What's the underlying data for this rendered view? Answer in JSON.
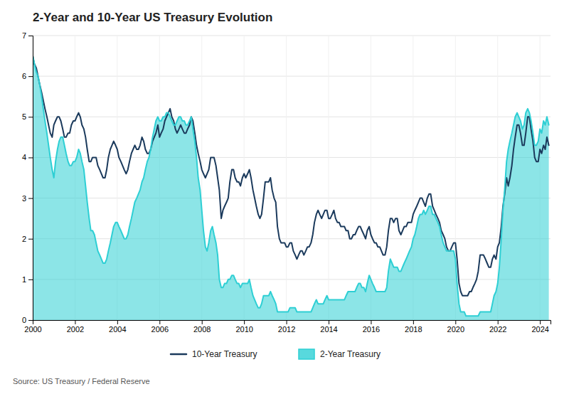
{
  "chart_data": {
    "type": "line",
    "title": "2-Year and 10-Year US Treasury Evolution",
    "annotations": [
      "Source: US Treasury / Federal Reserve"
    ],
    "xlim": [
      2000,
      2024.5
    ],
    "xticks": [
      2000,
      2002,
      2004,
      2006,
      2008,
      2010,
      2012,
      2014,
      2016,
      2018,
      2020,
      2022,
      2024
    ],
    "ylim": [
      0,
      7
    ],
    "yticks": [
      0,
      1,
      2,
      3,
      4,
      5,
      6,
      7
    ],
    "grid": true,
    "legend": "bottom",
    "x": [
      2000.0,
      2000.08,
      2000.17,
      2000.25,
      2000.33,
      2000.42,
      2000.5,
      2000.58,
      2000.67,
      2000.75,
      2000.83,
      2000.92,
      2001.0,
      2001.08,
      2001.17,
      2001.25,
      2001.33,
      2001.42,
      2001.5,
      2001.58,
      2001.67,
      2001.75,
      2001.83,
      2001.92,
      2002.0,
      2002.08,
      2002.17,
      2002.25,
      2002.33,
      2002.42,
      2002.5,
      2002.58,
      2002.67,
      2002.75,
      2002.83,
      2002.92,
      2003.0,
      2003.08,
      2003.17,
      2003.25,
      2003.33,
      2003.42,
      2003.5,
      2003.58,
      2003.67,
      2003.75,
      2003.83,
      2003.92,
      2004.0,
      2004.08,
      2004.17,
      2004.25,
      2004.33,
      2004.42,
      2004.5,
      2004.58,
      2004.67,
      2004.75,
      2004.83,
      2004.92,
      2005.0,
      2005.08,
      2005.17,
      2005.25,
      2005.33,
      2005.42,
      2005.5,
      2005.58,
      2005.67,
      2005.75,
      2005.83,
      2005.92,
      2006.0,
      2006.08,
      2006.17,
      2006.25,
      2006.33,
      2006.42,
      2006.5,
      2006.58,
      2006.67,
      2006.75,
      2006.83,
      2006.92,
      2007.0,
      2007.08,
      2007.17,
      2007.25,
      2007.33,
      2007.42,
      2007.5,
      2007.58,
      2007.67,
      2007.75,
      2007.83,
      2007.92,
      2008.0,
      2008.08,
      2008.17,
      2008.25,
      2008.33,
      2008.42,
      2008.5,
      2008.58,
      2008.67,
      2008.75,
      2008.83,
      2008.92,
      2009.0,
      2009.08,
      2009.17,
      2009.25,
      2009.33,
      2009.42,
      2009.5,
      2009.58,
      2009.67,
      2009.75,
      2009.83,
      2009.92,
      2010.0,
      2010.08,
      2010.17,
      2010.25,
      2010.33,
      2010.42,
      2010.5,
      2010.58,
      2010.67,
      2010.75,
      2010.83,
      2010.92,
      2011.0,
      2011.08,
      2011.17,
      2011.25,
      2011.33,
      2011.42,
      2011.5,
      2011.58,
      2011.67,
      2011.75,
      2011.83,
      2011.92,
      2012.0,
      2012.08,
      2012.17,
      2012.25,
      2012.33,
      2012.42,
      2012.5,
      2012.58,
      2012.67,
      2012.75,
      2012.83,
      2012.92,
      2013.0,
      2013.08,
      2013.17,
      2013.25,
      2013.33,
      2013.42,
      2013.5,
      2013.58,
      2013.67,
      2013.75,
      2013.83,
      2013.92,
      2014.0,
      2014.08,
      2014.17,
      2014.25,
      2014.33,
      2014.42,
      2014.5,
      2014.58,
      2014.67,
      2014.75,
      2014.83,
      2014.92,
      2015.0,
      2015.08,
      2015.17,
      2015.25,
      2015.33,
      2015.42,
      2015.5,
      2015.58,
      2015.67,
      2015.75,
      2015.83,
      2015.92,
      2016.0,
      2016.08,
      2016.17,
      2016.25,
      2016.33,
      2016.42,
      2016.5,
      2016.58,
      2016.67,
      2016.75,
      2016.83,
      2016.92,
      2017.0,
      2017.08,
      2017.17,
      2017.25,
      2017.33,
      2017.42,
      2017.5,
      2017.58,
      2017.67,
      2017.75,
      2017.83,
      2017.92,
      2018.0,
      2018.08,
      2018.17,
      2018.25,
      2018.33,
      2018.42,
      2018.5,
      2018.58,
      2018.67,
      2018.75,
      2018.83,
      2018.92,
      2019.0,
      2019.08,
      2019.17,
      2019.25,
      2019.33,
      2019.42,
      2019.5,
      2019.58,
      2019.67,
      2019.75,
      2019.83,
      2019.92,
      2020.0,
      2020.08,
      2020.17,
      2020.25,
      2020.33,
      2020.42,
      2020.5,
      2020.58,
      2020.67,
      2020.75,
      2020.83,
      2020.92,
      2021.0,
      2021.08,
      2021.17,
      2021.25,
      2021.33,
      2021.42,
      2021.5,
      2021.58,
      2021.67,
      2021.75,
      2021.83,
      2021.92,
      2022.0,
      2022.08,
      2022.17,
      2022.25,
      2022.33,
      2022.42,
      2022.5,
      2022.58,
      2022.67,
      2022.75,
      2022.83,
      2022.92,
      2023.0,
      2023.08,
      2023.17,
      2023.25,
      2023.33,
      2023.42,
      2023.5,
      2023.58,
      2023.67,
      2023.75,
      2023.83,
      2023.92,
      2024.0,
      2024.08,
      2024.17,
      2024.25,
      2024.33,
      2024.42
    ],
    "series": [
      {
        "name": "10-Year Treasury",
        "type": "line",
        "color": "#1b3a5c",
        "values": [
          6.5,
          6.3,
          6.2,
          6.0,
          5.8,
          5.6,
          5.4,
          5.2,
          5.0,
          4.8,
          4.6,
          4.5,
          4.8,
          4.9,
          5.0,
          5.0,
          4.9,
          4.7,
          4.5,
          4.5,
          4.6,
          4.6,
          4.8,
          4.9,
          4.9,
          5.0,
          5.1,
          5.0,
          4.8,
          4.7,
          4.5,
          4.2,
          3.9,
          3.9,
          4.0,
          4.0,
          4.0,
          3.8,
          3.7,
          3.6,
          3.5,
          3.5,
          3.7,
          4.0,
          4.2,
          4.3,
          4.4,
          4.3,
          4.2,
          4.0,
          3.9,
          3.8,
          3.7,
          3.6,
          3.7,
          3.9,
          4.1,
          4.2,
          4.3,
          4.2,
          4.2,
          4.3,
          4.5,
          4.4,
          4.2,
          4.1,
          4.1,
          4.2,
          4.4,
          4.5,
          4.6,
          4.8,
          4.5,
          4.6,
          4.7,
          4.9,
          5.0,
          5.1,
          5.2,
          5.0,
          4.9,
          4.7,
          4.6,
          4.7,
          4.8,
          4.7,
          4.6,
          4.6,
          4.7,
          4.8,
          5.0,
          4.9,
          4.6,
          4.3,
          4.1,
          3.9,
          3.7,
          3.6,
          3.5,
          3.6,
          3.7,
          4.0,
          4.0,
          4.0,
          3.8,
          3.5,
          3.2,
          2.5,
          2.7,
          2.8,
          2.9,
          3.0,
          3.4,
          3.7,
          3.7,
          3.5,
          3.4,
          3.4,
          3.3,
          3.5,
          3.6,
          3.5,
          3.6,
          3.7,
          3.5,
          3.2,
          3.0,
          2.8,
          2.6,
          2.5,
          2.6,
          3.0,
          3.4,
          3.4,
          3.4,
          3.5,
          3.2,
          3.0,
          2.9,
          2.3,
          2.0,
          1.9,
          1.9,
          1.9,
          1.8,
          1.8,
          1.9,
          1.9,
          1.7,
          1.6,
          1.5,
          1.6,
          1.7,
          1.7,
          1.6,
          1.7,
          1.8,
          1.8,
          1.9,
          2.1,
          2.4,
          2.6,
          2.7,
          2.6,
          2.5,
          2.6,
          2.7,
          2.7,
          2.5,
          2.5,
          2.6,
          2.7,
          2.5,
          2.4,
          2.4,
          2.3,
          2.3,
          2.3,
          2.2,
          2.2,
          2.0,
          2.0,
          2.1,
          2.1,
          2.2,
          2.3,
          2.3,
          2.2,
          2.1,
          2.0,
          2.2,
          2.3,
          2.1,
          2.0,
          1.9,
          1.9,
          1.8,
          1.8,
          1.7,
          1.6,
          1.6,
          1.8,
          2.2,
          2.5,
          2.5,
          2.4,
          2.5,
          2.5,
          2.2,
          2.1,
          2.2,
          2.3,
          2.3,
          2.4,
          2.4,
          2.4,
          2.6,
          2.7,
          2.8,
          2.9,
          3.0,
          3.0,
          2.9,
          2.8,
          3.0,
          3.1,
          3.1,
          2.8,
          2.7,
          2.6,
          2.5,
          2.4,
          2.2,
          2.1,
          2.0,
          1.8,
          1.7,
          1.7,
          1.8,
          1.9,
          1.9,
          1.5,
          0.9,
          0.7,
          0.6,
          0.6,
          0.6,
          0.6,
          0.7,
          0.7,
          0.8,
          0.9,
          1.0,
          1.2,
          1.6,
          1.6,
          1.6,
          1.5,
          1.4,
          1.3,
          1.3,
          1.5,
          1.6,
          1.5,
          1.8,
          1.9,
          2.3,
          2.8,
          3.1,
          3.5,
          3.3,
          3.5,
          3.8,
          4.2,
          4.5,
          4.8,
          4.8,
          4.6,
          4.3,
          4.3,
          4.6,
          5.0,
          5.0,
          4.7,
          4.4,
          4.0,
          3.9,
          3.9,
          4.2,
          4.1,
          4.3,
          4.2,
          4.5,
          4.3
        ]
      },
      {
        "name": "2-Year Treasury",
        "type": "area",
        "color": "#2ecfd4",
        "values": [
          6.5,
          6.3,
          6.1,
          6.0,
          5.8,
          5.5,
          5.2,
          4.9,
          4.6,
          4.3,
          4.0,
          3.7,
          3.5,
          3.9,
          4.2,
          4.4,
          4.5,
          4.5,
          4.3,
          4.1,
          3.9,
          3.8,
          3.8,
          3.9,
          3.9,
          4.0,
          4.2,
          4.1,
          3.9,
          3.7,
          3.3,
          2.9,
          2.5,
          2.2,
          2.2,
          2.1,
          1.9,
          1.7,
          1.6,
          1.5,
          1.4,
          1.4,
          1.5,
          1.7,
          1.9,
          2.1,
          2.3,
          2.4,
          2.4,
          2.3,
          2.2,
          2.1,
          2.0,
          2.0,
          2.1,
          2.3,
          2.5,
          2.7,
          2.9,
          3.0,
          3.1,
          3.2,
          3.4,
          3.5,
          3.7,
          3.9,
          4.0,
          4.2,
          4.5,
          4.7,
          4.9,
          5.0,
          4.9,
          4.9,
          5.0,
          5.0,
          5.1,
          5.1,
          5.0,
          4.9,
          4.8,
          4.8,
          4.9,
          5.0,
          5.0,
          4.9,
          4.9,
          4.8,
          4.8,
          4.9,
          5.0,
          4.7,
          4.4,
          4.0,
          3.5,
          3.2,
          2.7,
          2.2,
          1.8,
          1.7,
          1.9,
          2.2,
          2.3,
          2.1,
          1.9,
          1.6,
          1.0,
          0.8,
          0.8,
          0.9,
          0.9,
          1.0,
          1.0,
          1.1,
          1.1,
          1.0,
          0.9,
          0.9,
          0.8,
          0.9,
          0.9,
          0.9,
          0.9,
          1.0,
          0.8,
          0.6,
          0.5,
          0.4,
          0.3,
          0.3,
          0.4,
          0.6,
          0.6,
          0.6,
          0.6,
          0.7,
          0.6,
          0.5,
          0.4,
          0.2,
          0.2,
          0.2,
          0.2,
          0.2,
          0.2,
          0.2,
          0.3,
          0.3,
          0.3,
          0.3,
          0.2,
          0.2,
          0.2,
          0.2,
          0.2,
          0.2,
          0.2,
          0.2,
          0.2,
          0.3,
          0.4,
          0.5,
          0.4,
          0.4,
          0.4,
          0.4,
          0.5,
          0.6,
          0.5,
          0.5,
          0.5,
          0.5,
          0.5,
          0.5,
          0.5,
          0.5,
          0.5,
          0.5,
          0.6,
          0.7,
          0.7,
          0.7,
          0.7,
          0.7,
          0.8,
          0.9,
          0.9,
          0.8,
          0.8,
          0.7,
          0.9,
          1.1,
          1.0,
          0.9,
          0.8,
          0.7,
          0.7,
          0.7,
          0.7,
          0.7,
          0.7,
          0.8,
          1.2,
          1.5,
          1.4,
          1.3,
          1.3,
          1.3,
          1.2,
          1.2,
          1.3,
          1.4,
          1.5,
          1.6,
          1.7,
          1.8,
          2.0,
          2.1,
          2.3,
          2.5,
          2.6,
          2.6,
          2.7,
          2.6,
          2.7,
          2.8,
          2.8,
          2.6,
          2.6,
          2.5,
          2.4,
          2.3,
          2.1,
          1.9,
          1.8,
          1.7,
          1.7,
          1.7,
          1.7,
          1.7,
          1.5,
          0.9,
          0.4,
          0.2,
          0.2,
          0.2,
          0.1,
          0.1,
          0.1,
          0.1,
          0.1,
          0.1,
          0.1,
          0.1,
          0.2,
          0.2,
          0.2,
          0.2,
          0.2,
          0.2,
          0.2,
          0.4,
          0.6,
          0.7,
          0.9,
          1.3,
          2.0,
          2.7,
          3.2,
          3.9,
          4.2,
          4.4,
          4.6,
          4.8,
          5.0,
          5.1,
          5.0,
          4.9,
          4.7,
          4.8,
          5.1,
          5.2,
          5.1,
          4.9,
          4.6,
          4.3,
          4.3,
          4.4,
          4.7,
          4.6,
          4.9,
          4.8,
          5.0,
          4.8
        ]
      }
    ]
  }
}
